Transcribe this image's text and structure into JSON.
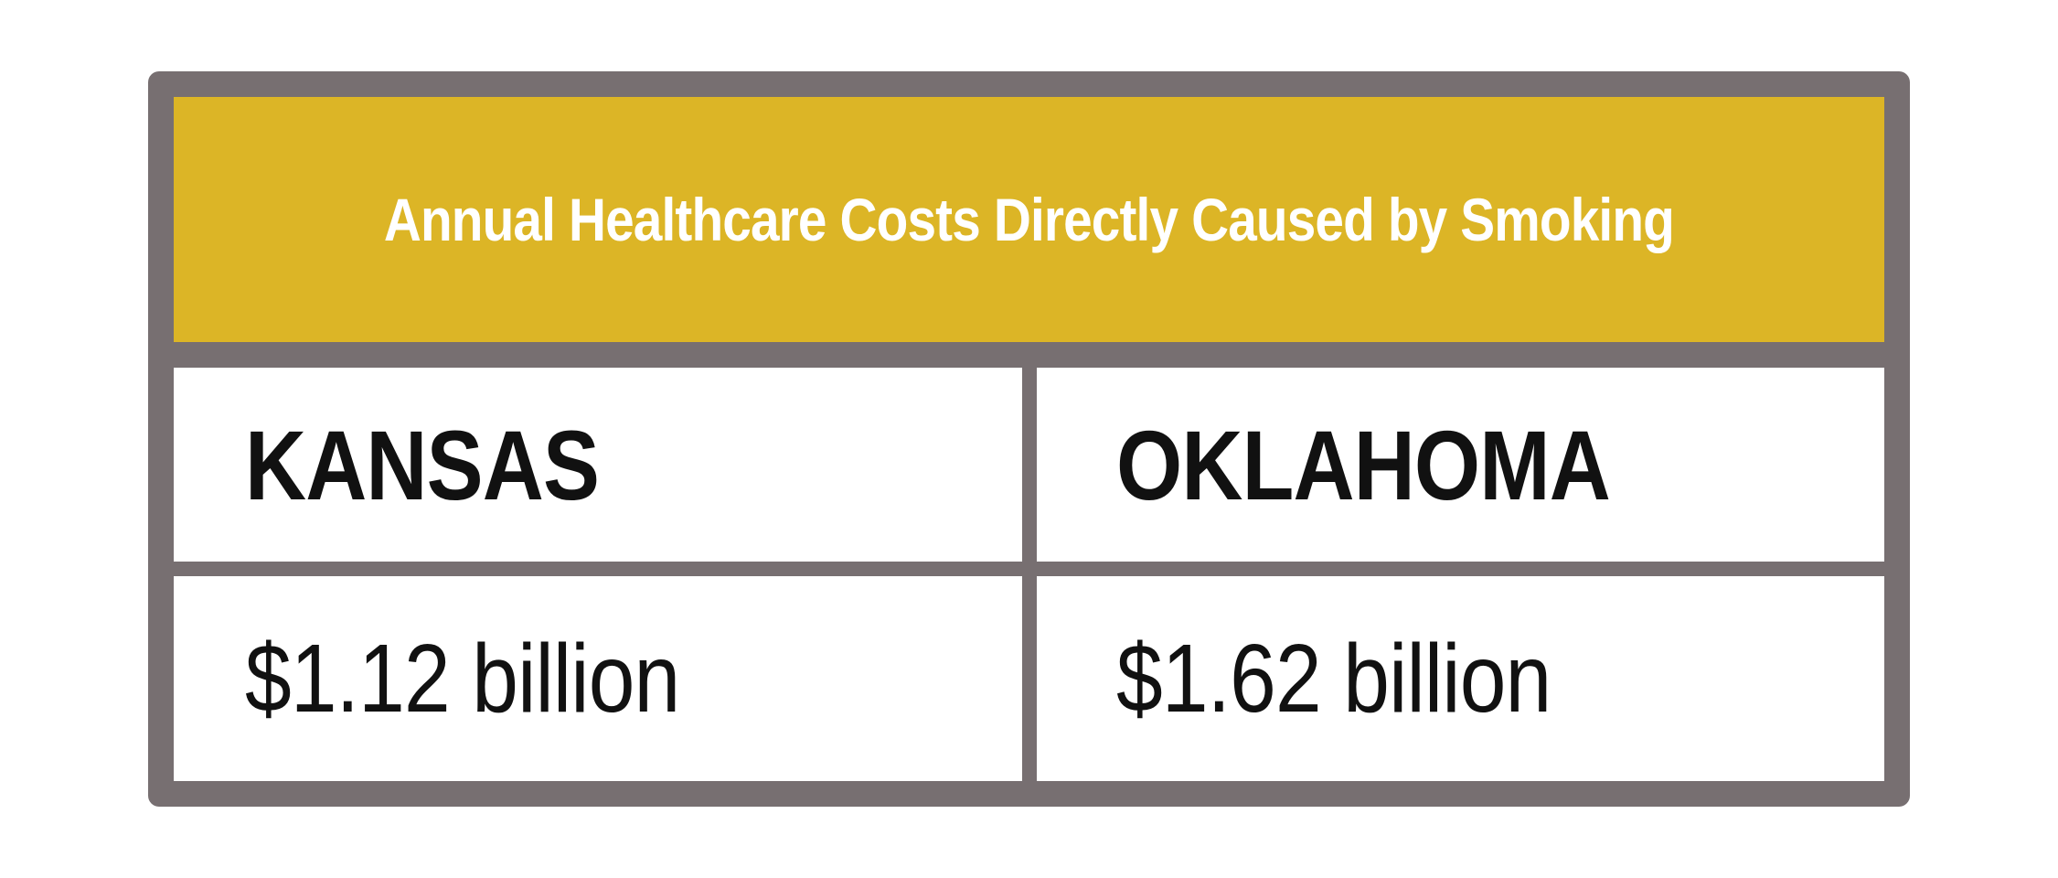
{
  "table": {
    "title": "Annual Healthcare Costs Directly Caused by Smoking",
    "columns": [
      {
        "state": "KANSAS",
        "cost": "$1.12 billion"
      },
      {
        "state": "OKLAHOMA",
        "cost": "$1.62 billion"
      }
    ],
    "colors": {
      "header_background": "#dcb526",
      "border": "#776f71",
      "header_text": "#ffffff",
      "body_text": "#111111",
      "cell_background": "#ffffff"
    }
  }
}
